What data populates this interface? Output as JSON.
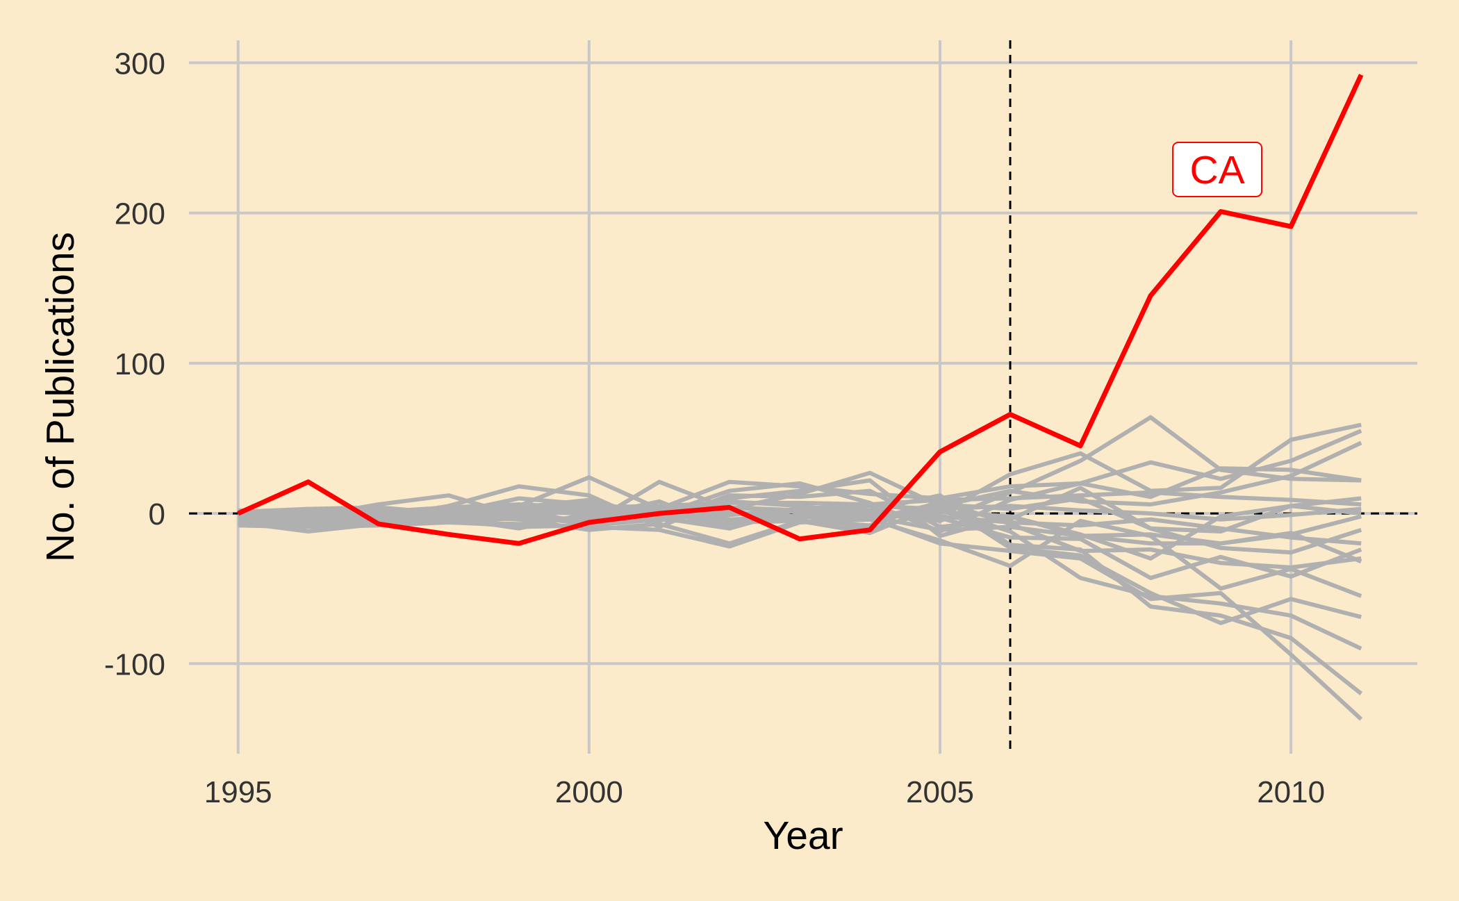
{
  "chart_data": {
    "type": "line",
    "title": "",
    "xlabel": "Year",
    "ylabel": "No. of Publications",
    "xlim": [
      1994.3,
      2011.8
    ],
    "ylim": [
      -160,
      315
    ],
    "x_ticks": [
      {
        "value": 1995,
        "label": "1995"
      },
      {
        "value": 2000,
        "label": "2000"
      },
      {
        "value": 2005,
        "label": "2005"
      },
      {
        "value": 2010,
        "label": "2010"
      }
    ],
    "y_ticks": [
      {
        "value": -100,
        "label": "-100"
      },
      {
        "value": 0,
        "label": "0"
      },
      {
        "value": 100,
        "label": "100"
      },
      {
        "value": 200,
        "label": "200"
      },
      {
        "value": 300,
        "label": "300"
      }
    ],
    "grid": true,
    "reference_lines": [
      {
        "orientation": "vertical",
        "value": 2006,
        "style": "dashed",
        "color": "#000000"
      },
      {
        "orientation": "horizontal",
        "value": 0,
        "style": "dashed",
        "color": "#000000"
      }
    ],
    "x": [
      1995,
      1996,
      1997,
      1998,
      1999,
      2000,
      2001,
      2002,
      2003,
      2004,
      2005,
      2006,
      2007,
      2008,
      2009,
      2010,
      2011
    ],
    "highlight_series": {
      "name": "CA",
      "color": "#FF0000",
      "values": [
        0,
        21,
        -7,
        -14,
        -20,
        -6,
        0,
        4,
        -17,
        -11,
        41,
        66,
        45,
        145,
        201,
        191,
        292
      ]
    },
    "series": [
      {
        "values": [
          0,
          3,
          4,
          0,
          10,
          6,
          2,
          8,
          5,
          0,
          -5,
          14,
          35,
          64,
          29,
          23,
          22
        ]
      },
      {
        "values": [
          -5,
          0,
          3,
          1,
          3,
          2,
          1,
          4,
          1,
          0,
          0,
          26,
          40,
          15,
          17,
          49,
          59
        ]
      },
      {
        "values": [
          -4,
          -3,
          -2,
          -1,
          5,
          24,
          3,
          21,
          18,
          13,
          10,
          18,
          20,
          34,
          23,
          35,
          55
        ]
      },
      {
        "values": [
          -3,
          -2,
          6,
          12,
          -2,
          -7,
          21,
          3,
          13,
          27,
          5,
          15,
          8,
          6,
          14,
          25,
          47
        ]
      },
      {
        "values": [
          -4,
          -5,
          -2,
          -3,
          1,
          0,
          -1,
          15,
          20,
          7,
          -12,
          9,
          20,
          11,
          30,
          29,
          22
        ]
      },
      {
        "values": [
          -2,
          0,
          -3,
          5,
          18,
          12,
          -9,
          10,
          15,
          22,
          -15,
          -2,
          -14,
          -30,
          -2,
          5,
          10
        ]
      },
      {
        "values": [
          -6,
          -12,
          -7,
          -3,
          -10,
          0,
          -5,
          12,
          11,
          15,
          -9,
          -4,
          17,
          -10,
          -12,
          5,
          0
        ]
      },
      {
        "values": [
          -3,
          -4,
          -2,
          -6,
          -8,
          -2,
          8,
          -10,
          3,
          6,
          1,
          -2,
          -15,
          -20,
          -20,
          -14,
          -2
        ]
      },
      {
        "values": [
          -2,
          1,
          0,
          -2,
          -4,
          -11,
          -7,
          -20,
          -5,
          -8,
          8,
          -7,
          -25,
          -24,
          -33,
          -36,
          -30
        ]
      },
      {
        "values": [
          0,
          2,
          1,
          3,
          4,
          9,
          -3,
          -10,
          4,
          2,
          -3,
          -16,
          -17,
          -43,
          -29,
          -42,
          -24
        ]
      },
      {
        "values": [
          -7,
          -8,
          -6,
          -5,
          6,
          -10,
          5,
          2,
          -6,
          -4,
          -18,
          -35,
          -5,
          -15,
          -50,
          -37,
          -55
        ]
      },
      {
        "values": [
          -8,
          -9,
          -8,
          -6,
          -7,
          -9,
          -11,
          -22,
          -6,
          -4,
          7,
          -23,
          -28,
          -53,
          -73,
          -57,
          -69
        ]
      },
      {
        "values": [
          -5,
          -6,
          -4,
          -5,
          -9,
          -8,
          -4,
          -7,
          -1,
          -11,
          3,
          -12,
          -43,
          -55,
          -60,
          -68,
          -90
        ]
      },
      {
        "values": [
          -3,
          -2,
          -5,
          -6,
          -3,
          -5,
          0,
          -4,
          -2,
          2,
          12,
          -21,
          -24,
          -62,
          -68,
          -83,
          -120
        ]
      },
      {
        "values": [
          -1,
          0,
          -1,
          0,
          2,
          1,
          3,
          0,
          -2,
          -3,
          -20,
          -25,
          -30,
          -57,
          -53,
          -94,
          -137
        ]
      },
      {
        "values": [
          1,
          3,
          2,
          -3,
          -2,
          6,
          0,
          -6,
          -5,
          -13,
          6,
          3,
          10,
          -10,
          -23,
          -26,
          -11
        ]
      },
      {
        "values": [
          -4,
          -3,
          -6,
          -2,
          1,
          -6,
          -3,
          -1,
          3,
          -2,
          -11,
          -9,
          -15,
          -14,
          -20,
          -13,
          -32
        ]
      },
      {
        "values": [
          2,
          0,
          1,
          4,
          6,
          4,
          5,
          7,
          7,
          6,
          9,
          10,
          12,
          14,
          11,
          9,
          6
        ]
      },
      {
        "values": [
          -2,
          -1,
          -3,
          0,
          -4,
          -3,
          -2,
          0,
          -3,
          1,
          -2,
          -6,
          -8,
          -4,
          -10,
          -16,
          -20
        ]
      },
      {
        "values": [
          0,
          -1,
          2,
          1,
          -1,
          3,
          2,
          4,
          2,
          5,
          3,
          5,
          2,
          0,
          -4,
          -1,
          3
        ]
      }
    ],
    "annotations": [
      {
        "text": "CA",
        "x": 2008.95,
        "y": 229,
        "color": "#FF0000",
        "box": true
      }
    ]
  }
}
